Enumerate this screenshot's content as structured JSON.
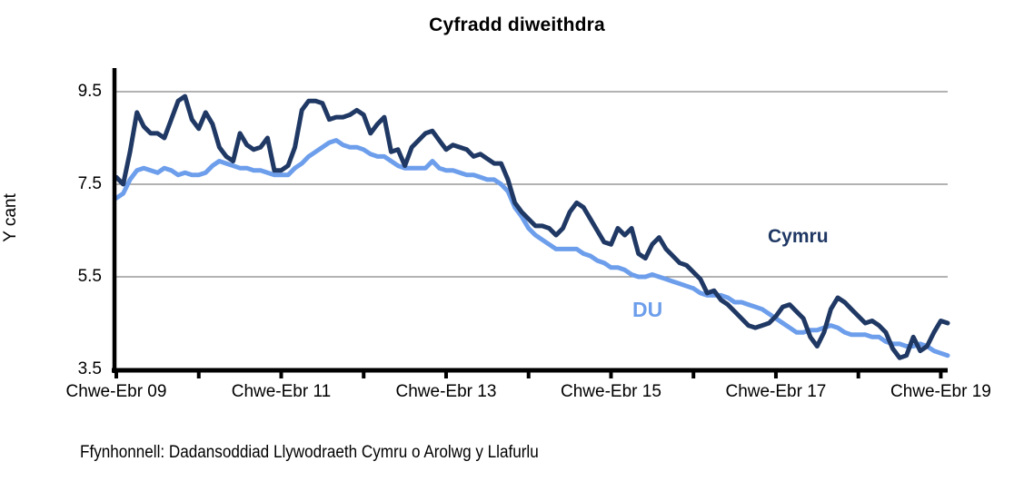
{
  "title": "Cyfradd diweithdra",
  "y_axis": {
    "label": "Y cant"
  },
  "series_labels": {
    "cymru": "Cymru",
    "du": "DU"
  },
  "source": "Ffynhonnell: Dadansoddiad Llywodraeth Cymru o Arolwg y Llafurlu",
  "colors": {
    "cymru_line": "#1F3864",
    "du_line": "#6D9EEB",
    "gridline": "#848484",
    "axis": "#000000",
    "background": "#FFFFFF"
  },
  "chart_data": {
    "type": "line",
    "title": "Cyfradd diweithdra",
    "xlabel": "",
    "ylabel": "Y cant",
    "ylim": [
      3.5,
      10.0
    ],
    "yticks": [
      9.5,
      7.5,
      5.5,
      3.5
    ],
    "grid": "horizontal gridlines at 5.5, 7.5, 9.5; x-axis ticks yearly",
    "legend_position": "inline labels near lines (Cymru dark navy, DU light blue)",
    "x_unit": "months since Chwe-Ebr 2009 (rolling 3-month periods, monthly)",
    "xticks": [
      {
        "t": 0,
        "label": "Chwe-Ebr 09"
      },
      {
        "t": 12,
        "label": ""
      },
      {
        "t": 24,
        "label": "Chwe-Ebr 11"
      },
      {
        "t": 36,
        "label": ""
      },
      {
        "t": 48,
        "label": "Chwe-Ebr 13"
      },
      {
        "t": 60,
        "label": ""
      },
      {
        "t": 72,
        "label": "Chwe-Ebr 15"
      },
      {
        "t": 84,
        "label": ""
      },
      {
        "t": 96,
        "label": "Chwe-Ebr 17"
      },
      {
        "t": 108,
        "label": ""
      },
      {
        "t": 120,
        "label": "Chwe-Ebr 19"
      }
    ],
    "series": [
      {
        "name": "Cymru",
        "color": "#1F3864",
        "values": [
          7.65,
          7.5,
          8.2,
          9.05,
          8.75,
          8.6,
          8.6,
          8.5,
          8.9,
          9.3,
          9.4,
          8.9,
          8.7,
          9.05,
          8.8,
          8.3,
          8.1,
          8.0,
          8.6,
          8.35,
          8.25,
          8.3,
          8.5,
          7.8,
          7.8,
          7.9,
          8.3,
          9.1,
          9.3,
          9.3,
          9.25,
          8.9,
          8.95,
          8.95,
          9.0,
          9.1,
          9.0,
          8.6,
          8.8,
          8.95,
          8.2,
          8.25,
          7.9,
          8.3,
          8.45,
          8.6,
          8.65,
          8.45,
          8.25,
          8.35,
          8.3,
          8.25,
          8.1,
          8.15,
          8.05,
          7.95,
          7.95,
          7.6,
          7.1,
          6.9,
          6.75,
          6.6,
          6.6,
          6.55,
          6.4,
          6.55,
          6.9,
          7.1,
          7.0,
          6.75,
          6.5,
          6.25,
          6.2,
          6.55,
          6.4,
          6.55,
          6.0,
          5.9,
          6.2,
          6.35,
          6.1,
          5.95,
          5.8,
          5.75,
          5.6,
          5.45,
          5.15,
          5.2,
          5.0,
          4.9,
          4.75,
          4.6,
          4.45,
          4.4,
          4.45,
          4.5,
          4.65,
          4.85,
          4.9,
          4.75,
          4.6,
          4.2,
          4.0,
          4.3,
          4.8,
          5.05,
          4.95,
          4.8,
          4.65,
          4.5,
          4.55,
          4.45,
          4.3,
          3.95,
          3.75,
          3.8,
          4.2,
          3.9,
          4.0,
          4.3,
          4.55,
          4.5
        ]
      },
      {
        "name": "DU",
        "color": "#6D9EEB",
        "values": [
          7.2,
          7.3,
          7.6,
          7.8,
          7.85,
          7.8,
          7.75,
          7.85,
          7.8,
          7.7,
          7.75,
          7.7,
          7.7,
          7.75,
          7.9,
          8.0,
          7.95,
          7.9,
          7.85,
          7.85,
          7.8,
          7.8,
          7.75,
          7.7,
          7.7,
          7.7,
          7.85,
          7.95,
          8.1,
          8.2,
          8.3,
          8.4,
          8.45,
          8.35,
          8.3,
          8.3,
          8.25,
          8.15,
          8.1,
          8.1,
          8.0,
          7.9,
          7.85,
          7.85,
          7.85,
          7.85,
          8.0,
          7.85,
          7.8,
          7.8,
          7.75,
          7.7,
          7.7,
          7.65,
          7.6,
          7.6,
          7.5,
          7.35,
          7.0,
          6.8,
          6.55,
          6.4,
          6.3,
          6.2,
          6.1,
          6.1,
          6.1,
          6.1,
          6.0,
          5.95,
          5.85,
          5.8,
          5.7,
          5.7,
          5.65,
          5.55,
          5.5,
          5.5,
          5.55,
          5.5,
          5.45,
          5.4,
          5.35,
          5.3,
          5.25,
          5.15,
          5.1,
          5.1,
          5.1,
          5.05,
          4.95,
          4.95,
          4.9,
          4.85,
          4.8,
          4.7,
          4.6,
          4.5,
          4.4,
          4.3,
          4.3,
          4.35,
          4.35,
          4.4,
          4.45,
          4.4,
          4.3,
          4.25,
          4.25,
          4.25,
          4.2,
          4.2,
          4.1,
          4.05,
          4.05,
          4.0,
          4.0,
          4.05,
          4.0,
          3.9,
          3.85,
          3.8
        ]
      }
    ]
  }
}
